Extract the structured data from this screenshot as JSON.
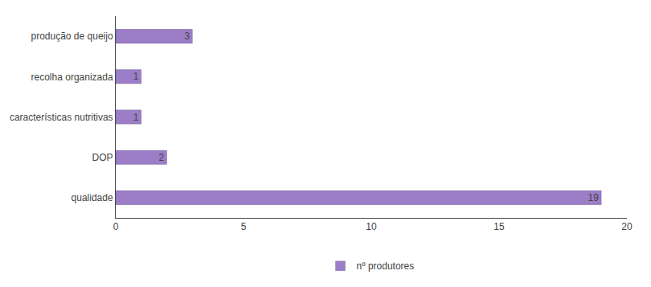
{
  "chart_data": {
    "type": "bar",
    "orientation": "horizontal",
    "categories": [
      "qualidade",
      "DOP",
      "características nutritivas",
      "recolha organizada",
      "produção de queijo"
    ],
    "series": [
      {
        "name": "nº produtores",
        "color": "#9B7DC8",
        "values": [
          19,
          2,
          1,
          1,
          3
        ]
      }
    ],
    "xlim": [
      0,
      20
    ],
    "xticks": [
      0,
      5,
      10,
      15,
      20
    ],
    "data_labels": true,
    "grid": false,
    "legend": "bottom"
  }
}
